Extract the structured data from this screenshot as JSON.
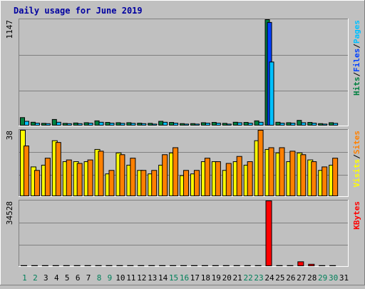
{
  "chart_data": [
    {
      "type": "bar",
      "title": "Daily usage for June 2019",
      "categories": [
        "1",
        "2",
        "3",
        "4",
        "5",
        "6",
        "7",
        "8",
        "9",
        "10",
        "11",
        "12",
        "13",
        "14",
        "15",
        "16",
        "17",
        "18",
        "19",
        "20",
        "21",
        "22",
        "23",
        "24",
        "25",
        "26",
        "27",
        "28",
        "29",
        "30",
        "31"
      ],
      "weekend_days": [
        "1",
        "2",
        "8",
        "9",
        "15",
        "16",
        "22",
        "23",
        "29",
        "30"
      ],
      "ymax_label": "1147",
      "ylim": [
        0,
        1147
      ],
      "legend": [
        {
          "label": "Hits",
          "color": "#008040"
        },
        {
          "label": "Files",
          "color": "#0040ff"
        },
        {
          "label": "Pages",
          "color": "#00c0ff"
        }
      ],
      "legend_sep": "/",
      "series": [
        {
          "name": "Hits",
          "color": "#008040",
          "values": [
            90,
            40,
            28,
            70,
            28,
            32,
            35,
            55,
            38,
            35,
            35,
            30,
            28,
            50,
            38,
            25,
            25,
            35,
            38,
            28,
            40,
            38,
            55,
            1147,
            40,
            35,
            60,
            38,
            25,
            35,
            0
          ]
        },
        {
          "name": "Files",
          "color": "#0040ff",
          "values": [
            0,
            0,
            0,
            0,
            0,
            0,
            0,
            0,
            0,
            0,
            0,
            0,
            0,
            0,
            0,
            0,
            0,
            0,
            0,
            0,
            0,
            0,
            0,
            1117,
            0,
            0,
            0,
            0,
            0,
            0,
            0
          ]
        },
        {
          "name": "Pages",
          "color": "#00c0ff",
          "values": [
            50,
            30,
            25,
            40,
            25,
            25,
            30,
            40,
            30,
            28,
            28,
            25,
            20,
            40,
            30,
            20,
            20,
            30,
            30,
            20,
            35,
            30,
            40,
            690,
            30,
            30,
            35,
            30,
            20,
            28,
            0
          ]
        }
      ]
    },
    {
      "type": "bar",
      "categories": [
        "1",
        "2",
        "3",
        "4",
        "5",
        "6",
        "7",
        "8",
        "9",
        "10",
        "11",
        "12",
        "13",
        "14",
        "15",
        "16",
        "17",
        "18",
        "19",
        "20",
        "21",
        "22",
        "23",
        "24",
        "25",
        "26",
        "27",
        "28",
        "29",
        "30",
        "31"
      ],
      "ymax_label": "38",
      "ylim": [
        0,
        38
      ],
      "legend": [
        {
          "label": "Visits",
          "color": "#ffff00"
        },
        {
          "label": "Sites",
          "color": "#ff8000"
        }
      ],
      "legend_sep": "/",
      "series": [
        {
          "name": "Visits",
          "color": "#ffff00",
          "values": [
            38,
            17,
            18,
            32,
            20,
            20,
            20,
            27,
            13,
            25,
            18,
            15,
            13,
            18,
            25,
            12,
            13,
            20,
            20,
            15,
            20,
            18,
            32,
            27,
            25,
            20,
            25,
            21,
            15,
            18,
            0
          ]
        },
        {
          "name": "Sites",
          "color": "#ff8000",
          "values": [
            29,
            15,
            22,
            31,
            21,
            19,
            21,
            26,
            15,
            24,
            22,
            15,
            15,
            24,
            28,
            15,
            15,
            22,
            20,
            19,
            23,
            20,
            38,
            28,
            28,
            26,
            24,
            20,
            17,
            22,
            0
          ]
        }
      ]
    },
    {
      "type": "bar",
      "categories": [
        "1",
        "2",
        "3",
        "4",
        "5",
        "6",
        "7",
        "8",
        "9",
        "10",
        "11",
        "12",
        "13",
        "14",
        "15",
        "16",
        "17",
        "18",
        "19",
        "20",
        "21",
        "22",
        "23",
        "24",
        "25",
        "26",
        "27",
        "28",
        "29",
        "30",
        "31"
      ],
      "ymax_label": "34528",
      "ylim": [
        0,
        34528
      ],
      "legend": [
        {
          "label": "KBytes",
          "color": "#ff0000"
        }
      ],
      "series": [
        {
          "name": "KBytes",
          "color": "#ff0000",
          "values": [
            500,
            500,
            500,
            500,
            500,
            500,
            500,
            500,
            500,
            500,
            500,
            500,
            500,
            500,
            500,
            500,
            500,
            500,
            500,
            500,
            500,
            500,
            500,
            34528,
            500,
            500,
            2500,
            1200,
            500,
            500,
            0
          ]
        }
      ]
    }
  ]
}
